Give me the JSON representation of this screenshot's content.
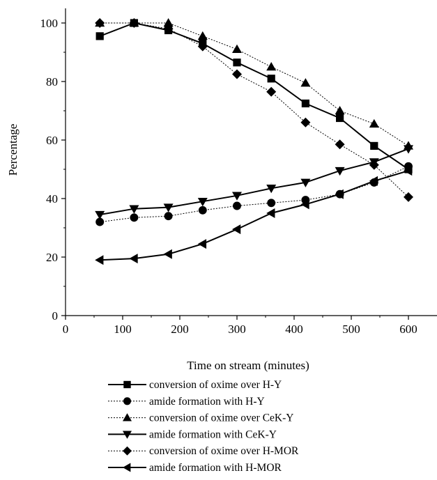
{
  "chart_data": {
    "type": "line",
    "title": "",
    "xlabel": "Time on stream (minutes)",
    "ylabel": "Percentage",
    "xlim": [
      0,
      650
    ],
    "ylim": [
      0,
      105
    ],
    "xticks": [
      0,
      100,
      200,
      300,
      400,
      500,
      600
    ],
    "yticks": [
      0,
      20,
      40,
      60,
      80,
      100
    ],
    "grid": false,
    "legend_position": "bottom",
    "x": [
      60,
      120,
      180,
      240,
      300,
      360,
      420,
      480,
      540,
      600
    ],
    "series": [
      {
        "name": "conversion of oxime over H-Y",
        "marker": "square",
        "line": "solid",
        "values": [
          95.5,
          100,
          97.5,
          93,
          86.5,
          81,
          72.5,
          67.5,
          58,
          50
        ]
      },
      {
        "name": "amide formation with H-Y",
        "marker": "circle",
        "line": "dotted",
        "values": [
          32,
          33.5,
          34,
          36,
          37.5,
          38.5,
          39.5,
          41.5,
          45.5,
          51
        ]
      },
      {
        "name": "conversion of oxime over CeK-Y",
        "marker": "triangle-up",
        "line": "dotted",
        "values": [
          100,
          100,
          100,
          95.5,
          91,
          85,
          79.5,
          70,
          65.5,
          58
        ]
      },
      {
        "name": "amide formation with CeK-Y",
        "marker": "triangle-down",
        "line": "solid",
        "values": [
          34.5,
          36.5,
          37,
          39,
          41,
          43.5,
          45.5,
          49.5,
          52.5,
          57
        ]
      },
      {
        "name": "conversion of oxime over H-MOR",
        "marker": "diamond",
        "line": "dotted",
        "values": [
          100,
          100,
          98,
          92,
          82.5,
          76.5,
          66,
          58.5,
          51.5,
          40.5
        ]
      },
      {
        "name": "amide formation with H-MOR",
        "marker": "triangle-left",
        "line": "solid",
        "values": [
          19,
          19.5,
          21,
          24.5,
          29.5,
          35,
          38,
          41.5,
          46,
          49.5
        ]
      }
    ]
  }
}
